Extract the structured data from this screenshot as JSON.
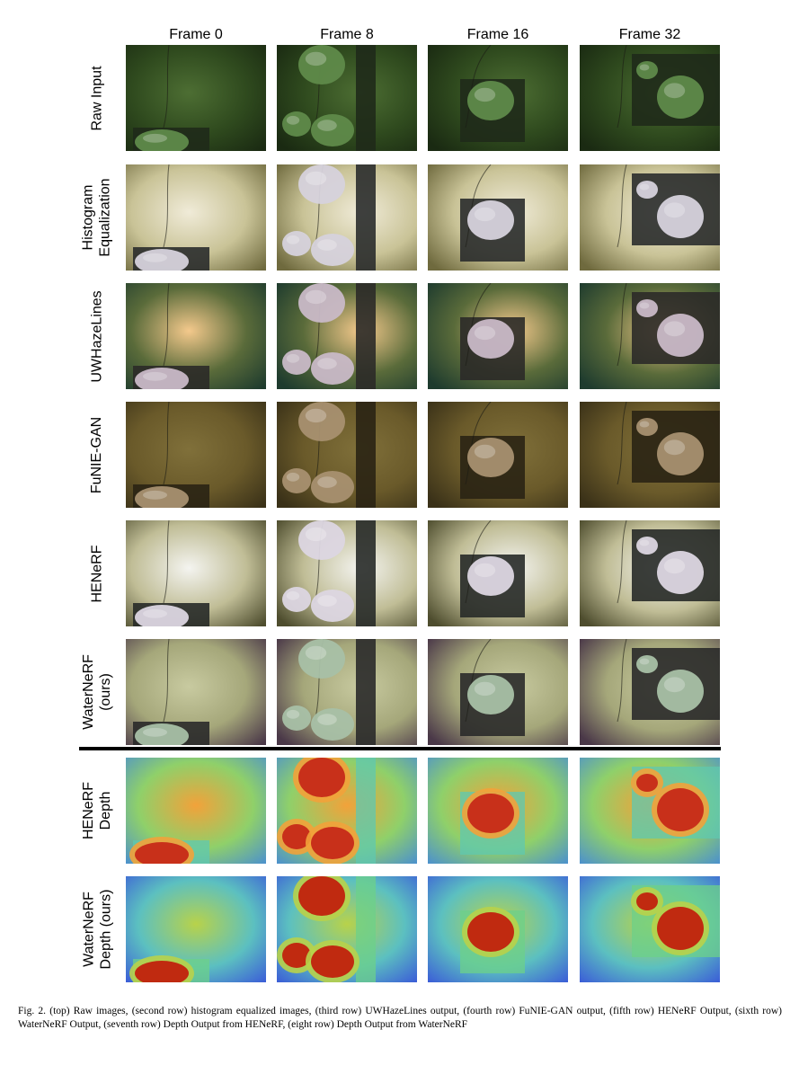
{
  "columns": [
    "Frame 0",
    "Frame 8",
    "Frame 16",
    "Frame 32"
  ],
  "rows": [
    {
      "label_lines": [
        "Raw Input"
      ],
      "kind": "image",
      "tone": {
        "bg": "#2f4a1e",
        "bg2": "#1a2a12",
        "hi": "#4d6e33",
        "rock": "#5f8a4a",
        "mat": "#1f2a1a"
      }
    },
    {
      "label_lines": [
        "Histogram",
        "Equalization"
      ],
      "kind": "image",
      "tone": {
        "bg": "#c9c397",
        "bg2": "#6f6a3e",
        "hi": "#f0ebd8",
        "rock": "#d6d2dc",
        "mat": "#2a2c2c"
      }
    },
    {
      "label_lines": [
        "UWHazeLines"
      ],
      "kind": "image",
      "tone": {
        "bg": "#5a6b3a",
        "bg2": "#1e3b2e",
        "hi": "#f4c98c",
        "rock": "#c9b9c7",
        "mat": "#2b2a28"
      }
    },
    {
      "label_lines": [
        "FuNIE-GAN"
      ],
      "kind": "image",
      "tone": {
        "bg": "#6a5a2a",
        "bg2": "#3a3118",
        "hi": "#80703a",
        "rock": "#a89070",
        "mat": "#2a2414"
      }
    },
    {
      "label_lines": [
        "HENeRF"
      ],
      "kind": "image",
      "tone": {
        "bg": "#c0bd96",
        "bg2": "#4e4d2e",
        "hi": "#f4f4f0",
        "rock": "#dcd6e2",
        "mat": "#272a28"
      }
    },
    {
      "label_lines": [
        "WaterNeRF",
        "(ours)"
      ],
      "kind": "image",
      "tone": {
        "bg": "#a5a77a",
        "bg2": "#4a3848",
        "hi": "#c8caa0",
        "rock": "#a8c0a6",
        "mat": "#2a2a2a"
      }
    },
    {
      "label_lines": [
        "HENeRF",
        "Depth"
      ],
      "kind": "depth",
      "tone": {
        "bg": "#8fd06a",
        "bg2": "#4a8fd0",
        "hi": "#f2a23a",
        "rock": "#c8301a",
        "mat": "#5fc8b0"
      }
    },
    {
      "label_lines": [
        "WaterNeRF",
        "Depth (ours)"
      ],
      "kind": "depth",
      "tone": {
        "bg": "#5cc0c0",
        "bg2": "#3a5ad8",
        "hi": "#b8d24a",
        "rock": "#c02a10",
        "mat": "#6cd08a"
      }
    }
  ],
  "caption": "Fig. 2.  (top) Raw images, (second row) histogram equalized images, (third row) UWHazeLines output, (fourth row) FuNIE-GAN output, (fifth row) HENeRF Output, (sixth row) WaterNeRF Output, (seventh row) Depth Output from HENeRF, (eight row) Depth Output from WaterNeRF"
}
